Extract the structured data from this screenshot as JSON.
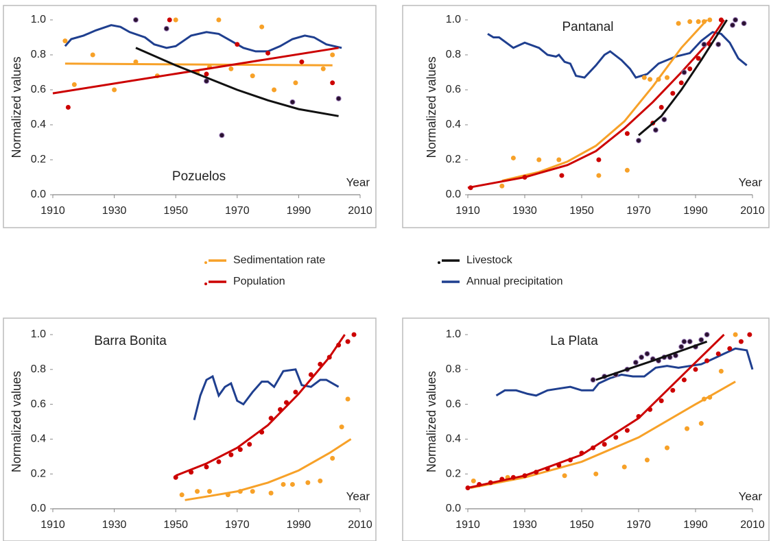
{
  "chart_data": [
    {
      "type": "line",
      "title": "Pozuelos",
      "ylabel": "Normalized values",
      "xlabel": "Year",
      "xlim": [
        1910,
        2010
      ],
      "ylim": [
        0,
        1
      ],
      "xticks": [
        1910,
        1930,
        1950,
        1970,
        1990,
        2010
      ],
      "yticks": [
        {
          "value": 0,
          "label": "0.0"
        },
        {
          "value": 0.2,
          "label": "0.2"
        },
        {
          "value": 0.4,
          "label": "0.4"
        },
        {
          "value": 0.6,
          "label": "0.6"
        },
        {
          "value": 0.8,
          "label": "0.8"
        },
        {
          "value": 1,
          "label": "1.0"
        }
      ],
      "series": [
        {
          "name": "Annual precipitation",
          "style": "line",
          "color": "#1f3f8f",
          "x": [
            1914,
            1916,
            1920,
            1924,
            1929,
            1932,
            1935,
            1940,
            1943,
            1947,
            1950,
            1955,
            1960,
            1964,
            1968,
            1972,
            1976,
            1980,
            1984,
            1988,
            1992,
            1995,
            1999,
            2004
          ],
          "values": [
            0.85,
            0.89,
            0.91,
            0.94,
            0.97,
            0.96,
            0.93,
            0.9,
            0.86,
            0.84,
            0.85,
            0.91,
            0.93,
            0.92,
            0.88,
            0.84,
            0.82,
            0.82,
            0.85,
            0.89,
            0.91,
            0.9,
            0.86,
            0.84
          ]
        },
        {
          "name": "Sedimentation rate",
          "style": "points",
          "color": "#f7a128",
          "x": [
            1914,
            1917,
            1923,
            1930,
            1937,
            1944,
            1950,
            1957,
            1961,
            1964,
            1968,
            1975,
            1978,
            1982,
            1989,
            1998,
            2001
          ],
          "values": [
            0.88,
            0.63,
            0.8,
            0.6,
            0.76,
            0.68,
            1.0,
            0.7,
            0.73,
            1.0,
            0.72,
            0.68,
            0.96,
            0.6,
            0.64,
            0.72,
            0.8
          ]
        },
        {
          "name": "Sedimentation rate",
          "style": "line",
          "color": "#f7a128",
          "x": [
            1914,
            2001
          ],
          "values": [
            0.75,
            0.74
          ]
        },
        {
          "name": "Population",
          "style": "points",
          "color": "#cc0000",
          "x": [
            1915,
            1948,
            1960,
            1970,
            1980,
            1991,
            2001
          ],
          "values": [
            0.5,
            1.0,
            0.69,
            0.86,
            0.81,
            0.76,
            0.64
          ]
        },
        {
          "name": "Population",
          "style": "line",
          "color": "#cc0000",
          "x": [
            1910,
            2003
          ],
          "values": [
            0.58,
            0.84
          ]
        },
        {
          "name": "Livestock",
          "style": "points",
          "color": "#2a1230",
          "x": [
            1937,
            1947,
            1960,
            1965,
            1988,
            2003
          ],
          "values": [
            1.0,
            0.95,
            0.65,
            0.34,
            0.53,
            0.55
          ]
        },
        {
          "name": "Livestock",
          "style": "line",
          "color": "#111111",
          "x": [
            1937,
            1950,
            1960,
            1970,
            1980,
            1990,
            2003
          ],
          "values": [
            0.84,
            0.74,
            0.67,
            0.6,
            0.54,
            0.49,
            0.45
          ]
        }
      ]
    },
    {
      "type": "line",
      "title": "Pantanal",
      "ylabel": "Normalized values",
      "xlabel": "Year",
      "xlim": [
        1910,
        2010
      ],
      "ylim": [
        0,
        1
      ],
      "xticks": [
        1910,
        1930,
        1950,
        1970,
        1990,
        2010
      ],
      "yticks": [
        {
          "value": 0,
          "label": "0.0"
        },
        {
          "value": 0.2,
          "label": "0.2"
        },
        {
          "value": 0.4,
          "label": "0.4"
        },
        {
          "value": 0.6,
          "label": "0.6"
        },
        {
          "value": 0.8,
          "label": "0.8"
        },
        {
          "value": 1,
          "label": "1.0"
        }
      ],
      "series": [
        {
          "name": "Annual precipitation",
          "style": "line",
          "color": "#1f3f8f",
          "x": [
            1917,
            1919,
            1921,
            1926,
            1930,
            1935,
            1938,
            1941,
            1942,
            1944,
            1946,
            1948,
            1951,
            1955,
            1958,
            1960,
            1964,
            1967,
            1969,
            1973,
            1977,
            1983,
            1988,
            1992,
            1996,
            1999,
            2002,
            2005,
            2008
          ],
          "values": [
            0.92,
            0.9,
            0.9,
            0.84,
            0.87,
            0.84,
            0.8,
            0.79,
            0.8,
            0.76,
            0.75,
            0.68,
            0.67,
            0.74,
            0.8,
            0.82,
            0.77,
            0.72,
            0.67,
            0.69,
            0.75,
            0.79,
            0.81,
            0.88,
            0.93,
            0.92,
            0.87,
            0.78,
            0.74
          ]
        },
        {
          "name": "Sedimentation rate",
          "style": "points",
          "color": "#f7a128",
          "x": [
            1922,
            1926,
            1935,
            1942,
            1956,
            1966,
            1972,
            1974,
            1977,
            1980,
            1984,
            1988,
            1991,
            1993,
            1995
          ],
          "values": [
            0.05,
            0.21,
            0.2,
            0.2,
            0.11,
            0.14,
            0.67,
            0.66,
            0.66,
            0.67,
            0.98,
            0.99,
            0.99,
            0.99,
            1.0
          ]
        },
        {
          "name": "Sedimentation rate",
          "style": "line",
          "color": "#f7a128",
          "x": [
            1922,
            1935,
            1945,
            1955,
            1965,
            1975,
            1985,
            1994
          ],
          "values": [
            0.08,
            0.13,
            0.19,
            0.28,
            0.42,
            0.62,
            0.84,
            1.0
          ]
        },
        {
          "name": "Population",
          "style": "points",
          "color": "#cc0000",
          "x": [
            1911,
            1930,
            1943,
            1956,
            1966,
            1975,
            1978,
            1982,
            1985,
            1988,
            1991,
            1995,
            1999
          ],
          "values": [
            0.04,
            0.1,
            0.11,
            0.2,
            0.35,
            0.41,
            0.5,
            0.58,
            0.64,
            0.72,
            0.78,
            0.86,
            1.0
          ]
        },
        {
          "name": "Population",
          "style": "line",
          "color": "#cc0000",
          "x": [
            1910,
            1930,
            1945,
            1955,
            1965,
            1975,
            1985,
            1995,
            2000
          ],
          "values": [
            0.04,
            0.1,
            0.17,
            0.25,
            0.38,
            0.53,
            0.7,
            0.88,
            1.0
          ]
        },
        {
          "name": "Livestock",
          "style": "points",
          "color": "#2a1230",
          "x": [
            1970,
            1976,
            1979,
            1986,
            1993,
            1998,
            2003,
            2004,
            2007
          ],
          "values": [
            0.31,
            0.37,
            0.43,
            0.7,
            0.86,
            0.86,
            0.97,
            1.0,
            0.98
          ]
        },
        {
          "name": "Livestock",
          "style": "line",
          "color": "#111111",
          "x": [
            1970,
            1978,
            1985,
            1992,
            2001
          ],
          "values": [
            0.34,
            0.45,
            0.6,
            0.77,
            1.0
          ]
        }
      ]
    },
    {
      "type": "line",
      "title": "Barra Bonita",
      "ylabel": "Normalized values",
      "xlabel": "Year",
      "xlim": [
        1910,
        2010
      ],
      "ylim": [
        0,
        1
      ],
      "xticks": [
        1910,
        1930,
        1950,
        1970,
        1990,
        2010
      ],
      "yticks": [
        {
          "value": 0,
          "label": "0.0"
        },
        {
          "value": 0.2,
          "label": "0.2"
        },
        {
          "value": 0.4,
          "label": "0.4"
        },
        {
          "value": 0.6,
          "label": "0.6"
        },
        {
          "value": 0.8,
          "label": "0.8"
        },
        {
          "value": 1,
          "label": "1.0"
        }
      ],
      "series": [
        {
          "name": "Annual precipitation",
          "style": "line",
          "color": "#1f3f8f",
          "x": [
            1956,
            1958,
            1960,
            1962,
            1964,
            1966,
            1968,
            1970,
            1972,
            1975,
            1978,
            1980,
            1982,
            1985,
            1989,
            1991,
            1994,
            1997,
            1999,
            2003
          ],
          "values": [
            0.51,
            0.65,
            0.74,
            0.76,
            0.65,
            0.7,
            0.72,
            0.62,
            0.6,
            0.67,
            0.73,
            0.73,
            0.7,
            0.79,
            0.8,
            0.71,
            0.7,
            0.74,
            0.74,
            0.7
          ]
        },
        {
          "name": "Sedimentation rate",
          "style": "points",
          "color": "#f7a128",
          "x": [
            1952,
            1957,
            1961,
            1967,
            1971,
            1975,
            1981,
            1985,
            1988,
            1993,
            1997,
            2001,
            2004,
            2006
          ],
          "values": [
            0.08,
            0.1,
            0.1,
            0.08,
            0.1,
            0.1,
            0.09,
            0.14,
            0.14,
            0.15,
            0.16,
            0.29,
            0.47,
            0.63
          ]
        },
        {
          "name": "Sedimentation rate",
          "style": "line",
          "color": "#f7a128",
          "x": [
            1953,
            1960,
            1970,
            1980,
            1990,
            2000,
            2007
          ],
          "values": [
            0.05,
            0.07,
            0.1,
            0.15,
            0.22,
            0.32,
            0.4
          ]
        },
        {
          "name": "Population",
          "style": "points",
          "color": "#cc0000",
          "x": [
            1950,
            1955,
            1960,
            1964,
            1968,
            1971,
            1974,
            1978,
            1981,
            1984,
            1986,
            1989,
            1994,
            1997,
            2000,
            2003,
            2006,
            2008
          ],
          "values": [
            0.18,
            0.21,
            0.24,
            0.27,
            0.31,
            0.34,
            0.37,
            0.44,
            0.52,
            0.57,
            0.61,
            0.67,
            0.77,
            0.83,
            0.87,
            0.94,
            0.96,
            1.0
          ]
        },
        {
          "name": "Population",
          "style": "line",
          "color": "#cc0000",
          "x": [
            1950,
            1960,
            1970,
            1980,
            1990,
            2000,
            2005
          ],
          "values": [
            0.19,
            0.26,
            0.35,
            0.48,
            0.66,
            0.87,
            1.0
          ]
        }
      ]
    },
    {
      "type": "line",
      "title": "La Plata",
      "ylabel": "Normalized values",
      "xlabel": "Year",
      "xlim": [
        1910,
        2010
      ],
      "ylim": [
        0,
        1
      ],
      "xticks": [
        1910,
        1930,
        1950,
        1970,
        1990,
        2010
      ],
      "yticks": [
        {
          "value": 0,
          "label": "0.0"
        },
        {
          "value": 0.2,
          "label": "0.2"
        },
        {
          "value": 0.4,
          "label": "0.4"
        },
        {
          "value": 0.6,
          "label": "0.6"
        },
        {
          "value": 0.8,
          "label": "0.8"
        },
        {
          "value": 1,
          "label": "1.0"
        }
      ],
      "series": [
        {
          "name": "Annual precipitation",
          "style": "line",
          "color": "#1f3f8f",
          "x": [
            1920,
            1923,
            1927,
            1931,
            1934,
            1938,
            1942,
            1946,
            1950,
            1954,
            1956,
            1960,
            1964,
            1968,
            1972,
            1976,
            1980,
            1984,
            1988,
            1992,
            1996,
            2000,
            2004,
            2008,
            2010
          ],
          "values": [
            0.65,
            0.68,
            0.68,
            0.66,
            0.65,
            0.68,
            0.69,
            0.7,
            0.68,
            0.68,
            0.72,
            0.75,
            0.77,
            0.76,
            0.76,
            0.81,
            0.82,
            0.81,
            0.82,
            0.83,
            0.86,
            0.89,
            0.92,
            0.91,
            0.8
          ]
        },
        {
          "name": "Sedimentation rate",
          "style": "points",
          "color": "#f7a128",
          "x": [
            1912,
            1924,
            1944,
            1955,
            1965,
            1973,
            1980,
            1987,
            1992,
            1993,
            1995,
            1999,
            2004
          ],
          "values": [
            0.16,
            0.18,
            0.19,
            0.2,
            0.24,
            0.28,
            0.35,
            0.46,
            0.49,
            0.63,
            0.64,
            0.79,
            1.0
          ]
        },
        {
          "name": "Sedimentation rate",
          "style": "line",
          "color": "#f7a128",
          "x": [
            1911,
            1930,
            1950,
            1970,
            1990,
            2004
          ],
          "values": [
            0.12,
            0.18,
            0.27,
            0.41,
            0.6,
            0.73
          ]
        },
        {
          "name": "Population",
          "style": "points",
          "color": "#cc0000",
          "x": [
            1910,
            1914,
            1918,
            1922,
            1926,
            1930,
            1934,
            1938,
            1942,
            1946,
            1950,
            1954,
            1958,
            1962,
            1966,
            1970,
            1974,
            1978,
            1982,
            1986,
            1990,
            1994,
            1998,
            2002,
            2006,
            2009
          ],
          "values": [
            0.12,
            0.14,
            0.15,
            0.17,
            0.18,
            0.19,
            0.21,
            0.23,
            0.25,
            0.28,
            0.32,
            0.35,
            0.37,
            0.41,
            0.45,
            0.53,
            0.57,
            0.62,
            0.68,
            0.74,
            0.8,
            0.85,
            0.89,
            0.92,
            0.96,
            1.0
          ]
        },
        {
          "name": "Population",
          "style": "line",
          "color": "#cc0000",
          "x": [
            1910,
            1930,
            1950,
            1970,
            1990,
            2000
          ],
          "values": [
            0.12,
            0.19,
            0.31,
            0.52,
            0.84,
            1.0
          ]
        },
        {
          "name": "Livestock",
          "style": "points",
          "color": "#2a1230",
          "x": [
            1954,
            1958,
            1962,
            1966,
            1969,
            1971,
            1973,
            1975,
            1977,
            1979,
            1981,
            1983,
            1985,
            1986,
            1988,
            1990,
            1992,
            1994
          ],
          "values": [
            0.74,
            0.76,
            0.77,
            0.8,
            0.84,
            0.87,
            0.89,
            0.86,
            0.85,
            0.87,
            0.87,
            0.88,
            0.93,
            0.96,
            0.96,
            0.93,
            0.97,
            1.0
          ]
        },
        {
          "name": "Livestock",
          "style": "line",
          "color": "#111111",
          "x": [
            1955,
            1975,
            1994
          ],
          "values": [
            0.74,
            0.85,
            0.96
          ]
        }
      ]
    }
  ],
  "legend": [
    {
      "name": "Sedimentation rate",
      "color": "#f7a128"
    },
    {
      "name": "Population",
      "color": "#cc0000"
    },
    {
      "name": "Livestock",
      "color": "#111111"
    },
    {
      "name": "Annual precipitation",
      "color": "#1f3f8f"
    }
  ]
}
